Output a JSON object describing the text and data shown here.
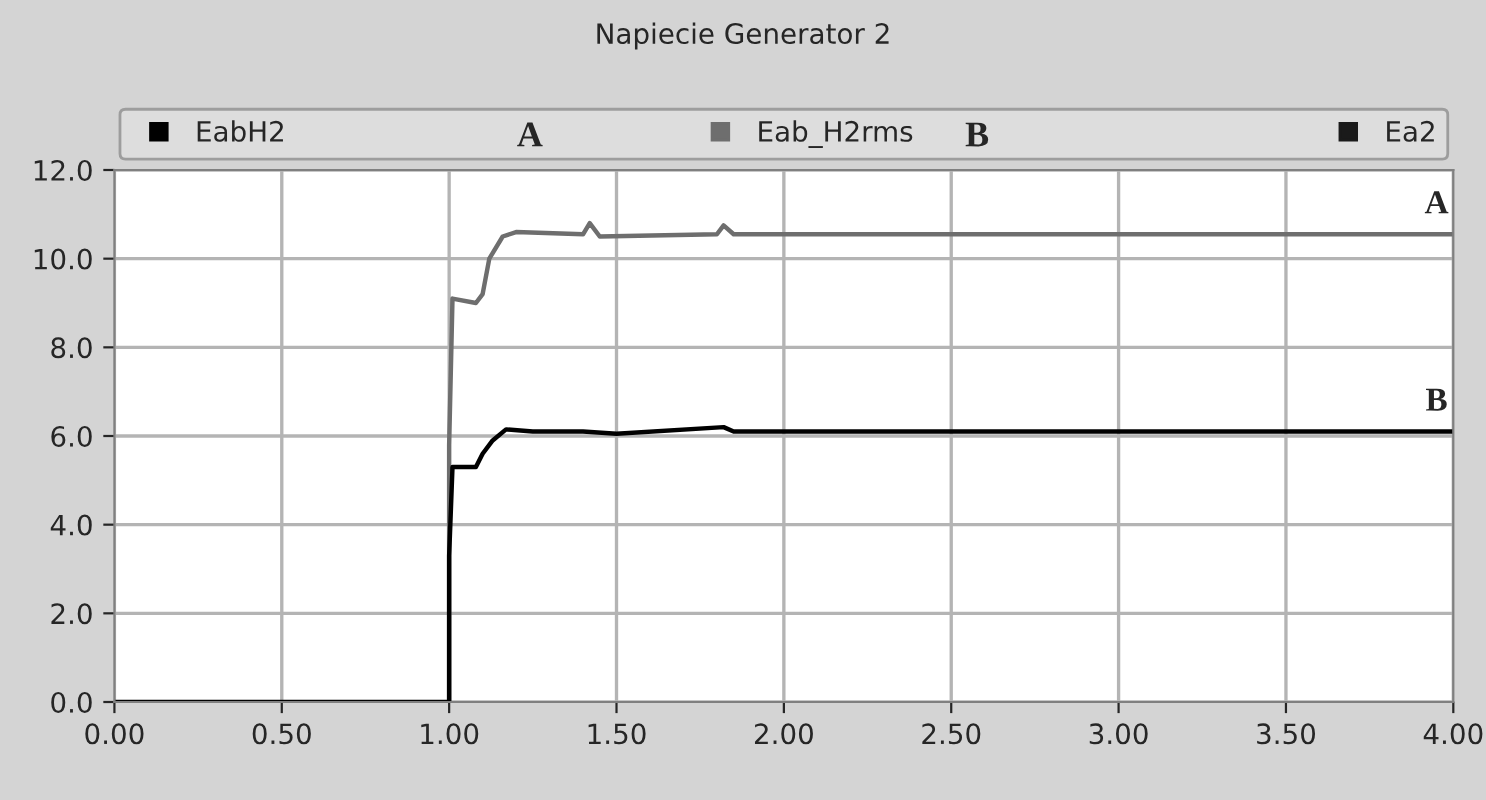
{
  "chart_data": {
    "type": "line",
    "title": "Napiecie Generator 2",
    "x": [
      0,
      1.0,
      1.0,
      1.01,
      1.08,
      1.1,
      1.13,
      1.17,
      1.25,
      1.4,
      1.5,
      1.82,
      1.85,
      4.0
    ],
    "series": [
      {
        "name": "EabH2",
        "color": "#000000",
        "values": [
          0,
          0,
          3.3,
          5.3,
          5.3,
          5.6,
          5.9,
          6.15,
          6.1,
          6.1,
          6.05,
          6.2,
          6.1,
          6.1
        ]
      },
      {
        "name": "Eab_H2rms",
        "color": "#6e6e6e",
        "x": [
          1.0,
          1.0,
          1.01,
          1.08,
          1.1,
          1.12,
          1.16,
          1.2,
          1.4,
          1.42,
          1.45,
          1.8,
          1.82,
          1.85,
          4.0
        ],
        "values": [
          0,
          5.8,
          9.1,
          9.0,
          9.2,
          10.0,
          10.5,
          10.6,
          10.55,
          10.8,
          10.5,
          10.55,
          10.75,
          10.55,
          10.55
        ]
      },
      {
        "name": "Ea2",
        "color": "#1a1a1a",
        "values": [
          null,
          null,
          null,
          null,
          null,
          null,
          null,
          null,
          null,
          null,
          null,
          null,
          null,
          null
        ]
      }
    ],
    "annotations": [
      "A",
      "B",
      {
        "text": "A",
        "x": 3.95,
        "y": 10.55
      },
      {
        "text": "B",
        "x": 3.95,
        "y": 6.1
      }
    ],
    "xlim": [
      0,
      4
    ],
    "ylim": [
      0,
      12
    ],
    "xticks": [
      {
        "value": 0,
        "label": "0.00"
      },
      {
        "value": 0.5,
        "label": "0.50"
      },
      {
        "value": 1,
        "label": "1.00"
      },
      {
        "value": 1.5,
        "label": "1.50"
      },
      {
        "value": 2,
        "label": "2.00"
      },
      {
        "value": 2.5,
        "label": "2.50"
      },
      {
        "value": 3,
        "label": "3.00"
      },
      {
        "value": 3.5,
        "label": "3.50"
      },
      {
        "value": 4,
        "label": "4.00"
      }
    ],
    "yticks": [
      {
        "value": 0,
        "label": "0.0"
      },
      {
        "value": 2,
        "label": "2.0"
      },
      {
        "value": 4,
        "label": "4.0"
      },
      {
        "value": 6,
        "label": "6.0"
      },
      {
        "value": 8,
        "label": "8.0"
      },
      {
        "value": 10,
        "label": "10.0"
      },
      {
        "value": 12,
        "label": "12.0"
      }
    ],
    "grid": true,
    "legend": "top",
    "marker": "none",
    "line_style": "solid"
  }
}
